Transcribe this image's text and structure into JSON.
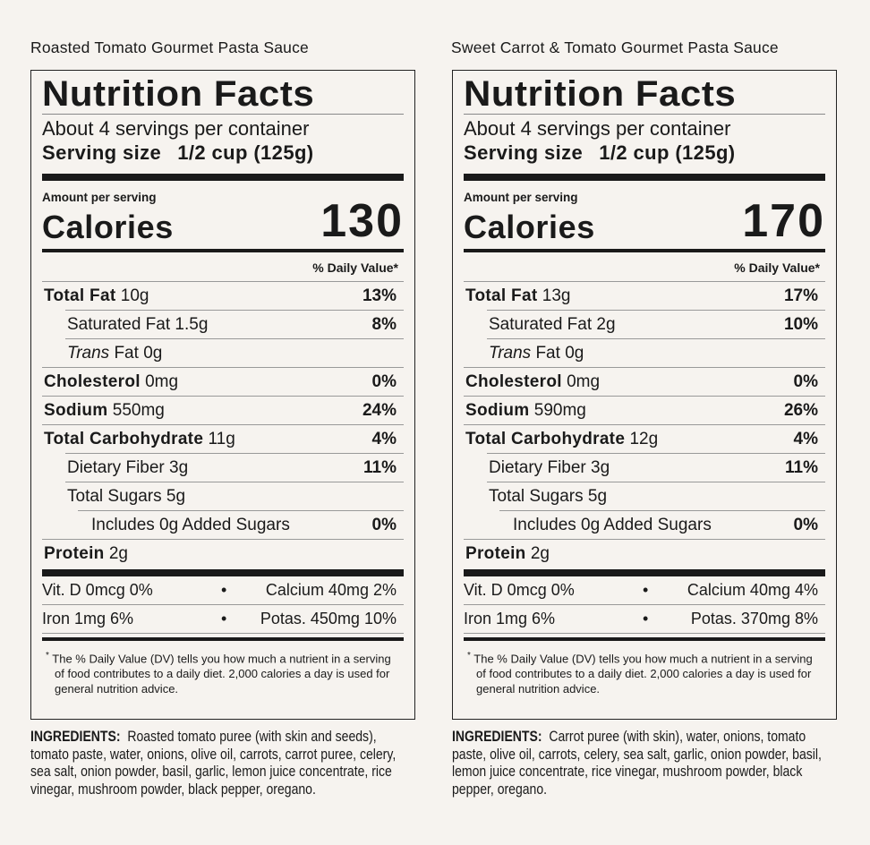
{
  "panels": [
    {
      "title": "Roasted Tomato Gourmet Pasta Sauce",
      "heading": "Nutrition Facts",
      "servings": "About 4 servings per container",
      "serving_size_label": "Serving size",
      "serving_size_value": "1/2 cup (125g)",
      "amount_per_serving": "Amount per serving",
      "calories_label": "Calories",
      "calories": "130",
      "dv_header": "% Daily Value*",
      "rows": [
        {
          "bold": "Total Fat",
          "name": "",
          "amount": "10g",
          "dv": "13%"
        },
        {
          "bold": "",
          "name": "Saturated Fat",
          "amount": "1.5g",
          "dv": "8%"
        },
        {
          "bold": "",
          "italic": "Trans",
          "name": "Fat",
          "amount": "0g",
          "dv": ""
        },
        {
          "bold": "Cholesterol",
          "name": "",
          "amount": "0mg",
          "dv": "0%"
        },
        {
          "bold": "Sodium",
          "name": "",
          "amount": "550mg",
          "dv": "24%"
        },
        {
          "bold": "Total Carbohydrate",
          "name": "",
          "amount": "11g",
          "dv": "4%"
        },
        {
          "bold": "",
          "name": "Dietary Fiber",
          "amount": "3g",
          "dv": "11%"
        },
        {
          "bold": "",
          "name": "Total Sugars",
          "amount": "5g",
          "dv": ""
        },
        {
          "bold": "",
          "name": "Includes 0g Added Sugars",
          "amount": "",
          "dv": "0%"
        },
        {
          "bold": "Protein",
          "name": "",
          "amount": "2g",
          "dv": ""
        }
      ],
      "vitamins": [
        {
          "left": "Vit. D 0mcg 0%",
          "right_name": "Calcium 40mg",
          "right_dv": "2%"
        },
        {
          "left": "Iron 1mg 6%",
          "right_name": "Potas. 450mg",
          "right_dv": "10%"
        }
      ],
      "bullet": "•",
      "footnote_mark": "*",
      "footnote": "The % Daily Value (DV) tells you how much a nutrient in a serving of food contributes to a daily diet. 2,000 calories a day is used for general nutrition advice.",
      "ingredients_label": "INGREDIENTS:",
      "ingredients": "Roasted tomato puree (with skin and seeds), tomato paste, water, onions, olive oil, carrots, carrot puree, celery, sea salt, onion powder, basil, garlic, lemon juice concentrate, rice vinegar, mushroom powder, black pepper, oregano."
    },
    {
      "title": "Sweet Carrot & Tomato Gourmet Pasta Sauce",
      "heading": "Nutrition Facts",
      "servings": "About 4 servings per container",
      "serving_size_label": "Serving size",
      "serving_size_value": "1/2 cup (125g)",
      "amount_per_serving": "Amount per serving",
      "calories_label": "Calories",
      "calories": "170",
      "dv_header": "% Daily Value*",
      "rows": [
        {
          "bold": "Total Fat",
          "name": "",
          "amount": "13g",
          "dv": "17%"
        },
        {
          "bold": "",
          "name": "Saturated Fat",
          "amount": "2g",
          "dv": "10%"
        },
        {
          "bold": "",
          "italic": "Trans",
          "name": "Fat",
          "amount": "0g",
          "dv": ""
        },
        {
          "bold": "Cholesterol",
          "name": "",
          "amount": "0mg",
          "dv": "0%"
        },
        {
          "bold": "Sodium",
          "name": "",
          "amount": "590mg",
          "dv": "26%"
        },
        {
          "bold": "Total Carbohydrate",
          "name": "",
          "amount": "12g",
          "dv": "4%"
        },
        {
          "bold": "",
          "name": "Dietary Fiber",
          "amount": "3g",
          "dv": "11%"
        },
        {
          "bold": "",
          "name": "Total Sugars",
          "amount": "5g",
          "dv": ""
        },
        {
          "bold": "",
          "name": "Includes 0g Added Sugars",
          "amount": "",
          "dv": "0%"
        },
        {
          "bold": "Protein",
          "name": "",
          "amount": "2g",
          "dv": ""
        }
      ],
      "vitamins": [
        {
          "left": "Vit. D 0mcg 0%",
          "right_name": "Calcium 40mg",
          "right_dv": "4%"
        },
        {
          "left": "Iron 1mg 6%",
          "right_name": "Potas. 370mg",
          "right_dv": "8%"
        }
      ],
      "bullet": "•",
      "footnote_mark": "*",
      "footnote": "The % Daily Value (DV) tells you how much a nutrient in a serving of food contributes to a daily diet. 2,000 calories a day is used for general nutrition advice.",
      "ingredients_label": "INGREDIENTS:",
      "ingredients": "Carrot puree (with skin), water, onions, tomato paste, olive oil, carrots, celery, sea salt, garlic, onion powder, basil, lemon juice concentrate, rice vinegar, mushroom powder, black pepper, oregano."
    }
  ]
}
